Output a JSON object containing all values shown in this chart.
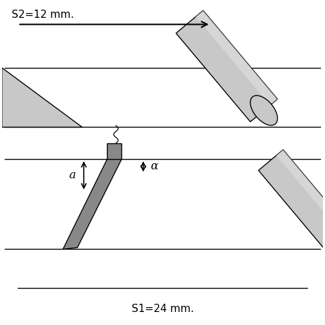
{
  "s2_label": "S2=12 mm.",
  "s1_label": "S1=24 mm.",
  "a_label": "a",
  "alpha_label": "α",
  "bg_color": "#ffffff",
  "light_gray": "#c8c8c8",
  "dark_gray": "#888888",
  "line_color": "#000000"
}
